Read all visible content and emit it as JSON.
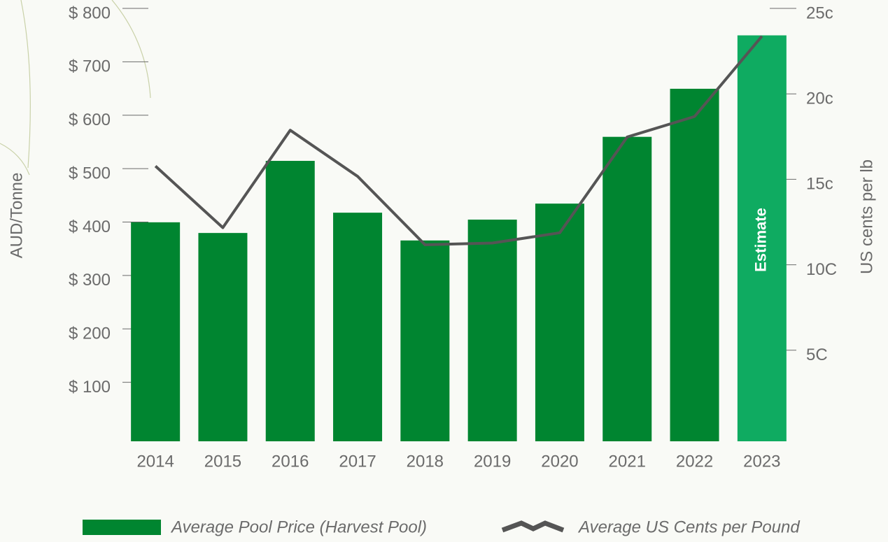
{
  "chart_data": {
    "type": "bar-line",
    "categories": [
      "2014",
      "2015",
      "2016",
      "2017",
      "2018",
      "2019",
      "2020",
      "2021",
      "2022",
      "2023"
    ],
    "series": [
      {
        "name": "Average Pool Price (Harvest Pool)",
        "type": "bar",
        "color": "#008530",
        "colors": [
          "#008530",
          "#008530",
          "#008530",
          "#008530",
          "#008530",
          "#008530",
          "#008530",
          "#008530",
          "#008530",
          "#0fab61"
        ],
        "values": [
          410,
          390,
          525,
          428,
          376,
          415,
          445,
          570,
          660,
          760
        ]
      },
      {
        "name": "Average US Cents per Pound",
        "type": "line",
        "axis": "y2",
        "color": "#555555",
        "values": [
          16.1,
          12.5,
          18.2,
          15.5,
          11.5,
          11.6,
          12.2,
          17.8,
          19.0,
          23.7
        ]
      }
    ],
    "ylabel": "AUD/Tonne",
    "y2label": "US cents per lb",
    "annotation": "Estimate",
    "ylim": [
      0,
      800
    ],
    "yticks": [
      {
        "value": 100,
        "label": "$ 100"
      },
      {
        "value": 200,
        "label": "$ 200"
      },
      {
        "value": 300,
        "label": "$ 300"
      },
      {
        "value": 400,
        "label": "$ 400"
      },
      {
        "value": 500,
        "label": "$ 500"
      },
      {
        "value": 600,
        "label": "$ 600"
      },
      {
        "value": 700,
        "label": "$ 700"
      },
      {
        "value": 800,
        "label": "$ 800"
      }
    ],
    "y2lim": [
      0,
      25
    ],
    "y2ticks": [
      {
        "value": 5,
        "label": "5C"
      },
      {
        "value": 10,
        "label": "10C"
      },
      {
        "value": 15,
        "label": "15c"
      },
      {
        "value": 20,
        "label": "20c"
      },
      {
        "value": 25,
        "label": "25c"
      }
    ]
  }
}
